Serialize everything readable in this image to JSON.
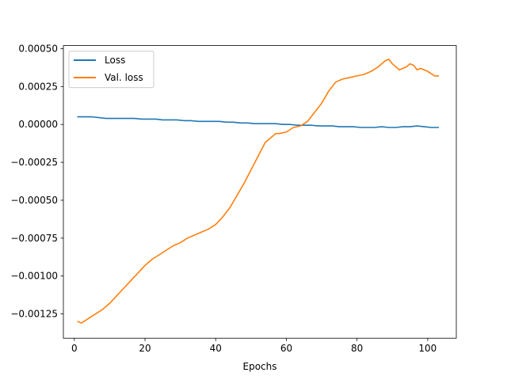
{
  "chart_data": {
    "type": "line",
    "title": "",
    "xlabel": "Epochs",
    "ylabel": "",
    "xlim": [
      -3.1,
      108.1
    ],
    "ylim": [
      -0.00141,
      0.00052
    ],
    "xticks": [
      0,
      20,
      40,
      60,
      80,
      100
    ],
    "xtick_labels": [
      "0",
      "20",
      "40",
      "60",
      "80",
      "100"
    ],
    "yticks": [
      0.0005,
      0.00025,
      0.0,
      -0.00025,
      -0.0005,
      -0.00075,
      -0.001,
      -0.00125
    ],
    "ytick_labels": [
      "0.00050",
      "0.00025",
      "0.00000",
      "−0.00025",
      "−0.00050",
      "−0.00075",
      "−0.00100",
      "−0.00125"
    ],
    "grid": false,
    "legend_position": "upper left",
    "series": [
      {
        "name": "Loss",
        "color": "#1f77b4",
        "x": [
          1,
          3,
          5,
          7,
          9,
          11,
          13,
          15,
          17,
          19,
          21,
          23,
          25,
          27,
          29,
          31,
          33,
          35,
          37,
          39,
          41,
          43,
          45,
          47,
          49,
          51,
          53,
          55,
          57,
          59,
          61,
          63,
          65,
          67,
          69,
          71,
          73,
          75,
          77,
          79,
          81,
          83,
          85,
          87,
          89,
          91,
          93,
          95,
          97,
          99,
          101,
          103
        ],
        "values": [
          5e-05,
          5e-05,
          5e-05,
          4.5e-05,
          4e-05,
          4e-05,
          4e-05,
          4e-05,
          4e-05,
          3.5e-05,
          3.5e-05,
          3.5e-05,
          3e-05,
          3e-05,
          3e-05,
          2.5e-05,
          2.5e-05,
          2e-05,
          2e-05,
          2e-05,
          2e-05,
          1.5e-05,
          1.5e-05,
          1e-05,
          1e-05,
          5e-06,
          5e-06,
          5e-06,
          5e-06,
          0.0,
          0.0,
          -5e-06,
          -5e-06,
          -5e-06,
          -1e-05,
          -1e-05,
          -1e-05,
          -1.5e-05,
          -1.5e-05,
          -1.5e-05,
          -2e-05,
          -2e-05,
          -2e-05,
          -1.5e-05,
          -2e-05,
          -2e-05,
          -1.5e-05,
          -1.5e-05,
          -1e-05,
          -1.5e-05,
          -2e-05,
          -2e-05
        ]
      },
      {
        "name": "Val. loss",
        "color": "#ff7f0e",
        "x": [
          1,
          2,
          4,
          6,
          8,
          10,
          12,
          14,
          16,
          18,
          20,
          22,
          24,
          26,
          28,
          30,
          32,
          34,
          36,
          38,
          40,
          42,
          44,
          46,
          48,
          50,
          52,
          54,
          56,
          57,
          58,
          60,
          62,
          64,
          66,
          68,
          70,
          72,
          74,
          76,
          78,
          80,
          82,
          84,
          86,
          88,
          89,
          90,
          92,
          94,
          95,
          96,
          97,
          98,
          100,
          102,
          103
        ],
        "values": [
          -0.0013,
          -0.00131,
          -0.00128,
          -0.00125,
          -0.00122,
          -0.00118,
          -0.00113,
          -0.00108,
          -0.00103,
          -0.00098,
          -0.00093,
          -0.00089,
          -0.00086,
          -0.00083,
          -0.0008,
          -0.00078,
          -0.00075,
          -0.00073,
          -0.00071,
          -0.00069,
          -0.00066,
          -0.00061,
          -0.00055,
          -0.00047,
          -0.00039,
          -0.0003,
          -0.00021,
          -0.00012,
          -8e-05,
          -6e-05,
          -6e-05,
          -5e-05,
          -2e-05,
          -1e-05,
          2e-05,
          8e-05,
          0.00014,
          0.00022,
          0.00028,
          0.0003,
          0.00031,
          0.00032,
          0.00033,
          0.00035,
          0.00038,
          0.00042,
          0.00043,
          0.0004,
          0.00036,
          0.00038,
          0.0004,
          0.00039,
          0.00036,
          0.00037,
          0.00035,
          0.00032,
          0.00032
        ]
      }
    ]
  }
}
